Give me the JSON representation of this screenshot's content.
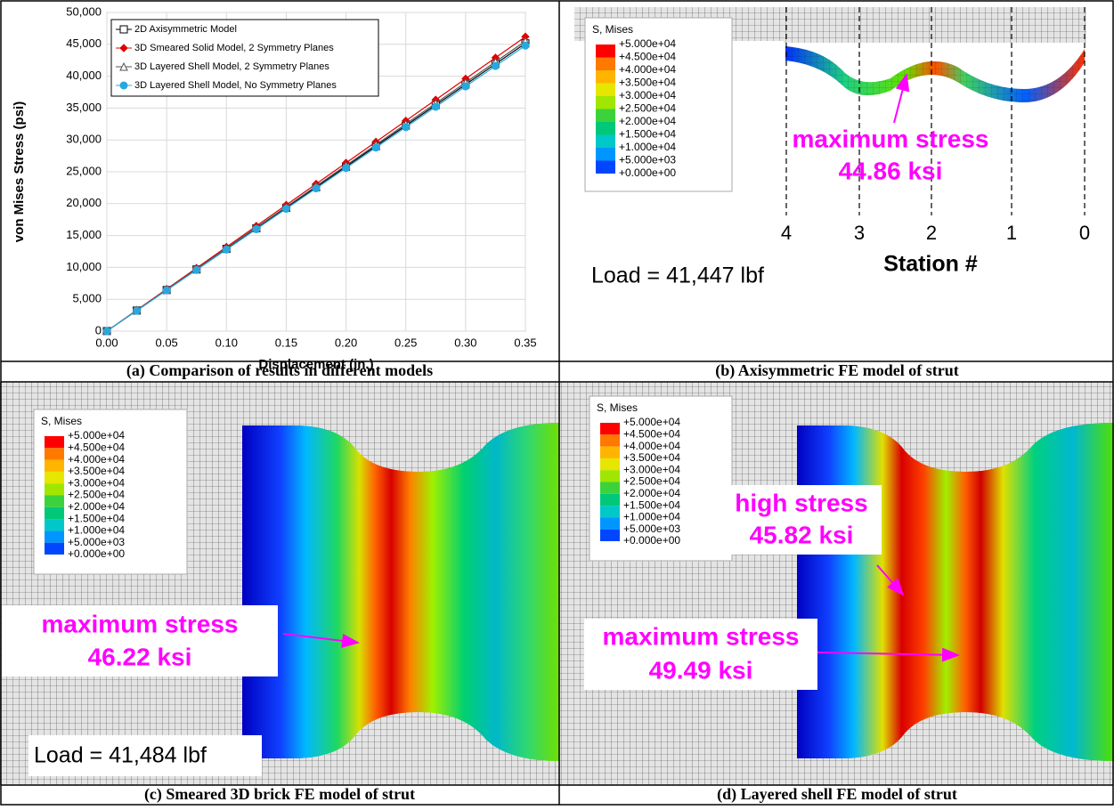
{
  "chart_data": {
    "type": "line",
    "x_label": "Displacement (in.)",
    "y_label": "von Mises Stress (psi)",
    "x": [
      0,
      0.025,
      0.05,
      0.075,
      0.1,
      0.125,
      0.15,
      0.175,
      0.2,
      0.225,
      0.25,
      0.275,
      0.3,
      0.325,
      0.35
    ],
    "series": [
      {
        "name": "2D Axisymmetric Model",
        "color": "#000000",
        "marker": "square",
        "values": [
          0,
          3225,
          6450,
          9675,
          12900,
          16125,
          19350,
          22575,
          25800,
          29025,
          32250,
          35475,
          38700,
          41925,
          45150
        ]
      },
      {
        "name": "3D Smeared Solid Model, 2 Symmetry Planes",
        "color": "#e00000",
        "marker": "diamond",
        "values": [
          0,
          3300,
          6600,
          9900,
          13200,
          16500,
          19800,
          23100,
          26400,
          29700,
          33000,
          36300,
          39600,
          42900,
          46200
        ]
      },
      {
        "name": "3D Layered Shell Model, 2 Symmetry Planes",
        "color": "#555555",
        "marker": "triangle",
        "values": [
          0,
          3250,
          6500,
          9750,
          13000,
          16250,
          19500,
          22750,
          26000,
          29250,
          32500,
          35750,
          39000,
          42250,
          45500
        ]
      },
      {
        "name": "3D Layered Shell Model, No Symmetry Planes",
        "color": "#29a8e0",
        "marker": "circle",
        "values": [
          0,
          3200,
          6400,
          9600,
          12800,
          16000,
          19200,
          22400,
          25600,
          28800,
          32000,
          35200,
          38400,
          41600,
          44800
        ]
      }
    ],
    "xlim": [
      0,
      0.35
    ],
    "ylim": [
      0,
      50000
    ],
    "xticks": [
      {
        "value": 0,
        "label": "0.00"
      },
      {
        "value": 0.05,
        "label": "0.05"
      },
      {
        "value": 0.1,
        "label": "0.10"
      },
      {
        "value": 0.15,
        "label": "0.15"
      },
      {
        "value": 0.2,
        "label": "0.20"
      },
      {
        "value": 0.25,
        "label": "0.25"
      },
      {
        "value": 0.3,
        "label": "0.30"
      },
      {
        "value": 0.35,
        "label": "0.35"
      }
    ],
    "yticks": [
      0,
      {
        "value": 5000,
        "label": "5,000"
      },
      {
        "value": 10000,
        "label": "10,000"
      },
      {
        "value": 15000,
        "label": "15,000"
      },
      {
        "value": 20000,
        "label": "20,000"
      },
      {
        "value": 25000,
        "label": "25,000"
      },
      {
        "value": 30000,
        "label": "30,000"
      },
      {
        "value": 35000,
        "label": "35,000"
      },
      {
        "value": 40000,
        "label": "40,000"
      },
      {
        "value": 45000,
        "label": "45,000"
      },
      {
        "value": 50000,
        "label": "50,000"
      }
    ],
    "grid": true,
    "legend": "upper-left"
  },
  "contour_legend": {
    "title": "S, Mises",
    "levels": [
      "+5.000e+04",
      "+4.500e+04",
      "+4.000e+04",
      "+3.500e+04",
      "+3.000e+04",
      "+2.500e+04",
      "+2.000e+04",
      "+1.500e+04",
      "+1.000e+04",
      "+5.000e+03",
      "+0.000e+00"
    ]
  },
  "panel_b": {
    "annotation": "maximum stress",
    "value": "44.86 ksi",
    "load": "Load = 41,447 lbf",
    "stations": [
      "4",
      "3",
      "2",
      "1",
      "0"
    ],
    "station_label": "Station #"
  },
  "panel_c": {
    "annotation": "maximum stress",
    "value": "46.22 ksi",
    "load": "Load = 41,484 lbf"
  },
  "panel_d": {
    "annotations": [
      {
        "label": "high stress",
        "value": "45.82 ksi"
      },
      {
        "label": "maximum stress",
        "value": "49.49 ksi"
      }
    ]
  },
  "captions": [
    "(a) Comparison of results in different models",
    "(b) Axisymmetric FE model of strut",
    "(c) Smeared 3D brick FE model of strut",
    "(d) Layered shell FE model of strut"
  ]
}
